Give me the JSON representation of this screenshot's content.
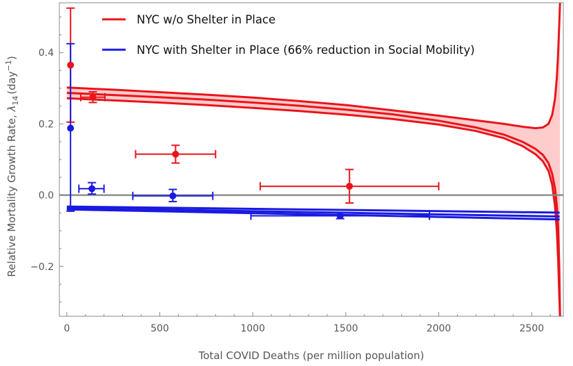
{
  "chart_data": {
    "type": "scatter",
    "xlabel": "Total COVID Deaths (per million population)",
    "ylabel_prefix": "Relative Mortality Growth Rate, ",
    "ylabel_symbol": "λ",
    "ylabel_subscript": "14",
    "ylabel_unit": "(day",
    "ylabel_exponent": "−1",
    "ylabel_close": ")",
    "xlim": [
      -40,
      2670
    ],
    "ylim": [
      -0.34,
      0.54
    ],
    "xticks": [
      0,
      500,
      1000,
      1500,
      2000,
      2500
    ],
    "xtick_labels": [
      "0",
      "500",
      "1000",
      "1500",
      "2000",
      "2500"
    ],
    "yticks": [
      -0.2,
      0.0,
      0.2,
      0.4
    ],
    "ytick_labels": [
      "−0.2",
      "0.0",
      "0.2",
      "0.4"
    ],
    "reference_line_y": 0.0,
    "colors": {
      "red": "#e8151b",
      "blue": "#1a1ae0",
      "band": "#ffcccc",
      "zero": "#888888",
      "frame": "#888888"
    },
    "legend": [
      {
        "label": "NYC w/o Shelter in Place",
        "color": "#e8151b"
      },
      {
        "label": "NYC with Shelter in Place (66% reduction in Social Mobility)",
        "color": "#1a1ae0"
      }
    ],
    "series": [
      {
        "name": "NYC w/o Shelter in Place",
        "color": "#e8151b",
        "points": [
          {
            "x": 20,
            "y": 0.365,
            "ylow": 0.205,
            "yhigh": 0.525,
            "xlow": 20,
            "xhigh": 20
          },
          {
            "x": 140,
            "y": 0.275,
            "ylow": 0.26,
            "yhigh": 0.29,
            "xlow": 75,
            "xhigh": 205
          },
          {
            "x": 585,
            "y": 0.115,
            "ylow": 0.09,
            "yhigh": 0.14,
            "xlow": 370,
            "xhigh": 800
          },
          {
            "x": 1520,
            "y": 0.025,
            "ylow": -0.022,
            "yhigh": 0.072,
            "xlow": 1040,
            "xhigh": 2000
          }
        ],
        "model_x": [
          0,
          250,
          500,
          750,
          1000,
          1250,
          1500,
          1750,
          2000,
          2200,
          2350,
          2450,
          2520,
          2560,
          2590,
          2610,
          2625,
          2635,
          2642,
          2648,
          2652
        ],
        "model_center": [
          0.287,
          0.281,
          0.275,
          0.268,
          0.26,
          0.251,
          0.24,
          0.227,
          0.209,
          0.19,
          0.17,
          0.15,
          0.13,
          0.113,
          0.09,
          0.06,
          0.02,
          -0.03,
          -0.09,
          -0.2,
          -0.34
        ],
        "model_upper": [
          0.302,
          0.296,
          0.289,
          0.282,
          0.274,
          0.264,
          0.253,
          0.238,
          0.223,
          0.21,
          0.2,
          0.192,
          0.188,
          0.19,
          0.2,
          0.225,
          0.27,
          0.33,
          0.4,
          0.48,
          0.54
        ],
        "model_lower": [
          0.272,
          0.266,
          0.26,
          0.253,
          0.245,
          0.236,
          0.226,
          0.214,
          0.198,
          0.18,
          0.16,
          0.138,
          0.115,
          0.095,
          0.068,
          0.03,
          -0.03,
          -0.1,
          -0.18,
          -0.28,
          -0.34
        ]
      },
      {
        "name": "NYC with Shelter in Place (66% reduction in Social Mobility)",
        "color": "#1a1ae0",
        "points": [
          {
            "x": 20,
            "y": 0.188,
            "ylow": -0.045,
            "yhigh": 0.425,
            "xlow": 20,
            "xhigh": 20
          },
          {
            "x": 135,
            "y": 0.018,
            "ylow": 0.003,
            "yhigh": 0.035,
            "xlow": 65,
            "xhigh": 200
          },
          {
            "x": 570,
            "y": -0.002,
            "ylow": -0.018,
            "yhigh": 0.016,
            "xlow": 355,
            "xhigh": 785
          },
          {
            "x": 1470,
            "y": -0.058,
            "ylow": -0.066,
            "yhigh": -0.05,
            "xlow": 990,
            "xhigh": 1950
          }
        ],
        "model_x": [
          0,
          2650
        ],
        "model_center": [
          -0.036,
          -0.06
        ],
        "model_upper": [
          -0.032,
          -0.049
        ],
        "model_lower": [
          -0.04,
          -0.068
        ]
      }
    ]
  }
}
